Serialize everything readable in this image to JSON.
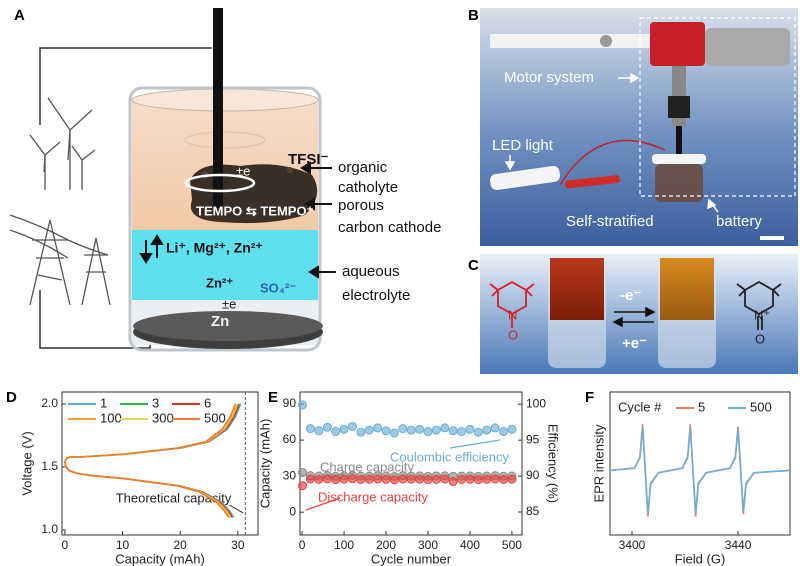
{
  "panel_a": {
    "label": "A",
    "catholyte": [
      "organic",
      "catholyte"
    ],
    "cathode": [
      "porous",
      "carbon cathode"
    ],
    "electrolyte": [
      "aqueous",
      "electrolyte"
    ],
    "anion_top": "TFSI⁻",
    "electron_top": "±e",
    "redox": "TEMPO ⇆ TEMPO⁺",
    "cations": "Li⁺, Mg²⁺, Zn²⁺",
    "anion_bottom": "SO₄²⁻",
    "zinc_ion": "Zn²⁺",
    "electron_bottom": "±e",
    "anode": "Zn"
  },
  "panel_b": {
    "label": "B",
    "motor": "Motor system",
    "led": "LED light",
    "stratified": "Self-stratified",
    "battery": "battery"
  },
  "panel_c": {
    "label": "C",
    "oxidation": "-e⁻",
    "reduction": "+e⁻",
    "left_atoms": [
      "N",
      "O"
    ],
    "right_atoms": [
      "N⁺",
      "O"
    ]
  },
  "chart_data": [
    {
      "type": "line",
      "panel_label": "D",
      "xlabel": "Capacity (mAh)",
      "ylabel": "Voltage (V)",
      "xlim": [
        -0.5,
        33.5
      ],
      "xticks": [
        0,
        10,
        20,
        30
      ],
      "ylim": [
        0.96,
        2.095
      ],
      "yticks": [
        {
          "value": 1,
          "label": "1.0"
        },
        1.5,
        {
          "value": 2,
          "label": "2.0"
        }
      ],
      "legend": "upper left",
      "vline": {
        "x": 31.3,
        "label": "Theoretical capacity"
      },
      "series": [
        {
          "name": "1",
          "color": "#5aa9d6",
          "x": [
            29.3,
            28.6,
            27.2,
            24,
            20,
            15,
            10,
            5,
            2,
            0.8,
            0.2,
            0,
            0.3,
            1,
            3,
            10,
            20,
            25,
            28.2,
            29.6,
            30.5
          ],
          "values": [
            1.1,
            1.15,
            1.22,
            1.3,
            1.35,
            1.38,
            1.41,
            1.43,
            1.45,
            1.47,
            1.5,
            1.54,
            1.57,
            1.58,
            1.58,
            1.6,
            1.65,
            1.7,
            1.8,
            1.9,
            2.0
          ]
        },
        {
          "name": "3",
          "color": "#3cb34a",
          "x": [
            29.1,
            28.4,
            27,
            23.9,
            20,
            15,
            10,
            5,
            2,
            0.8,
            0.2,
            0,
            0.3,
            1,
            3,
            10,
            20,
            24.9,
            28,
            29.4,
            30.3
          ],
          "values": [
            1.1,
            1.15,
            1.22,
            1.3,
            1.35,
            1.38,
            1.41,
            1.43,
            1.45,
            1.47,
            1.5,
            1.54,
            1.57,
            1.58,
            1.58,
            1.6,
            1.65,
            1.7,
            1.8,
            1.9,
            2.0
          ]
        },
        {
          "name": "6",
          "color": "#e0302a",
          "x": [
            29.0,
            28.3,
            26.9,
            23.8,
            19.9,
            15,
            10,
            5,
            2,
            0.8,
            0.2,
            0,
            0.3,
            1,
            3,
            10,
            19.9,
            24.8,
            27.9,
            29.3,
            30.2
          ],
          "values": [
            1.1,
            1.15,
            1.22,
            1.3,
            1.35,
            1.38,
            1.41,
            1.43,
            1.45,
            1.47,
            1.5,
            1.54,
            1.57,
            1.58,
            1.58,
            1.6,
            1.65,
            1.7,
            1.8,
            1.9,
            2.0
          ]
        },
        {
          "name": "100",
          "color": "#f5a030",
          "x": [
            28.8,
            28.1,
            26.7,
            23.7,
            19.8,
            14.9,
            10,
            5,
            2,
            0.8,
            0.2,
            0,
            0.3,
            1,
            3,
            10,
            19.8,
            24.7,
            27.7,
            29.1,
            30.0
          ],
          "values": [
            1.1,
            1.15,
            1.22,
            1.3,
            1.35,
            1.38,
            1.41,
            1.43,
            1.45,
            1.47,
            1.5,
            1.54,
            1.57,
            1.58,
            1.58,
            1.6,
            1.65,
            1.7,
            1.8,
            1.9,
            2.0
          ]
        },
        {
          "name": "300",
          "color": "#e6d45a",
          "x": [
            28.6,
            27.9,
            26.5,
            23.5,
            19.7,
            14.8,
            9.9,
            5,
            2,
            0.8,
            0.2,
            0,
            0.3,
            1,
            3,
            9.9,
            19.7,
            24.5,
            27.5,
            28.9,
            29.8
          ],
          "values": [
            1.1,
            1.15,
            1.22,
            1.3,
            1.35,
            1.38,
            1.41,
            1.43,
            1.45,
            1.47,
            1.5,
            1.54,
            1.57,
            1.58,
            1.58,
            1.6,
            1.65,
            1.7,
            1.8,
            1.9,
            2.0
          ]
        },
        {
          "name": "500",
          "color": "#f07830",
          "x": [
            28.4,
            27.7,
            26.3,
            23.4,
            19.6,
            14.7,
            9.9,
            5,
            2,
            0.8,
            0.2,
            0,
            0.3,
            1,
            3,
            9.9,
            19.6,
            24.4,
            27.3,
            28.7,
            29.6
          ],
          "values": [
            1.1,
            1.15,
            1.22,
            1.3,
            1.35,
            1.38,
            1.41,
            1.43,
            1.45,
            1.47,
            1.5,
            1.54,
            1.57,
            1.58,
            1.58,
            1.6,
            1.65,
            1.7,
            1.8,
            1.9,
            2.0
          ]
        }
      ]
    },
    {
      "type": "scatter",
      "panel_label": "E",
      "xlabel": "Cycle number",
      "ylabel": "Capacity (mAh)",
      "y2label": "Efficiency (%)",
      "xlim": [
        -5,
        524
      ],
      "xticks": [
        0,
        100,
        200,
        300,
        400,
        500
      ],
      "ylim": [
        -19,
        100
      ],
      "yticks": [
        0,
        30,
        60,
        90
      ],
      "y2lim": [
        81.8,
        101.7
      ],
      "y2ticks": [
        85,
        90,
        95,
        100
      ],
      "x": [
        1,
        20,
        40,
        60,
        80,
        100,
        120,
        140,
        160,
        180,
        200,
        220,
        240,
        260,
        280,
        300,
        320,
        340,
        360,
        380,
        400,
        420,
        440,
        460,
        480,
        500
      ],
      "series": [
        {
          "name": "Charge capacity",
          "color": "#8a8a8a",
          "values": [
            33,
            30.4,
            30.1,
            30.5,
            29.8,
            30.2,
            30.6,
            30,
            29.9,
            30.3,
            30.1,
            29.7,
            30.4,
            30,
            30.2,
            29.8,
            30.1,
            30.3,
            29.9,
            30,
            30.2,
            29.8,
            30.1,
            30.4,
            29.9,
            30.1
          ]
        },
        {
          "name": "Discharge capacity",
          "color": "#e8413c",
          "values": [
            22,
            27.6,
            27.3,
            27.8,
            27.1,
            27.5,
            27.9,
            27.2,
            27.4,
            27.7,
            27.3,
            27,
            27.6,
            27.4,
            27.5,
            27.1,
            27.3,
            27.6,
            25.5,
            27.2,
            27.4,
            27.1,
            27.3,
            27.6,
            27.2,
            27.4
          ]
        },
        {
          "name": "Coulombic efficiency",
          "color": "#6aaed6",
          "axis": "y2",
          "values": [
            99.9,
            96.6,
            96.3,
            96.8,
            96.2,
            96.5,
            96.9,
            96.1,
            96.4,
            96.7,
            96.3,
            96,
            96.6,
            96.4,
            96.5,
            96.2,
            96.4,
            96.7,
            96.3,
            96.2,
            96.5,
            96.1,
            96.4,
            96.7,
            96.2,
            96.5
          ]
        }
      ]
    },
    {
      "type": "line",
      "panel_label": "F",
      "xlabel": "Field (G)",
      "ylabel": "EPR intensity",
      "xlim": [
        3391.7,
        3459.6
      ],
      "xticks": [
        3400,
        3440
      ],
      "ylim": [
        -1.4,
        1.7
      ],
      "legend": "upper left",
      "legend_title": "Cycle #",
      "x": [
        3391.7,
        3401,
        3403,
        3404,
        3405,
        3406,
        3407,
        3410,
        3419,
        3421,
        3422,
        3423,
        3424,
        3425,
        3428,
        3437,
        3439,
        3440,
        3441,
        3442,
        3443,
        3446,
        3459.6
      ],
      "series": [
        {
          "name": "5",
          "color": "#f07a6a",
          "values": [
            0,
            0.05,
            0.3,
            1,
            0,
            -1,
            -0.3,
            -0.05,
            0.05,
            0.3,
            1,
            0,
            -1,
            -0.3,
            -0.05,
            0.05,
            0.3,
            0.95,
            0,
            -0.95,
            -0.3,
            -0.05,
            0
          ]
        },
        {
          "name": "500",
          "color": "#6aaed6",
          "values": [
            0,
            0.05,
            0.28,
            0.94,
            0,
            -0.94,
            -0.28,
            -0.05,
            0.05,
            0.28,
            0.94,
            0,
            -0.94,
            -0.28,
            -0.05,
            0.05,
            0.28,
            0.9,
            0,
            -0.9,
            -0.28,
            -0.05,
            0
          ]
        }
      ]
    }
  ]
}
